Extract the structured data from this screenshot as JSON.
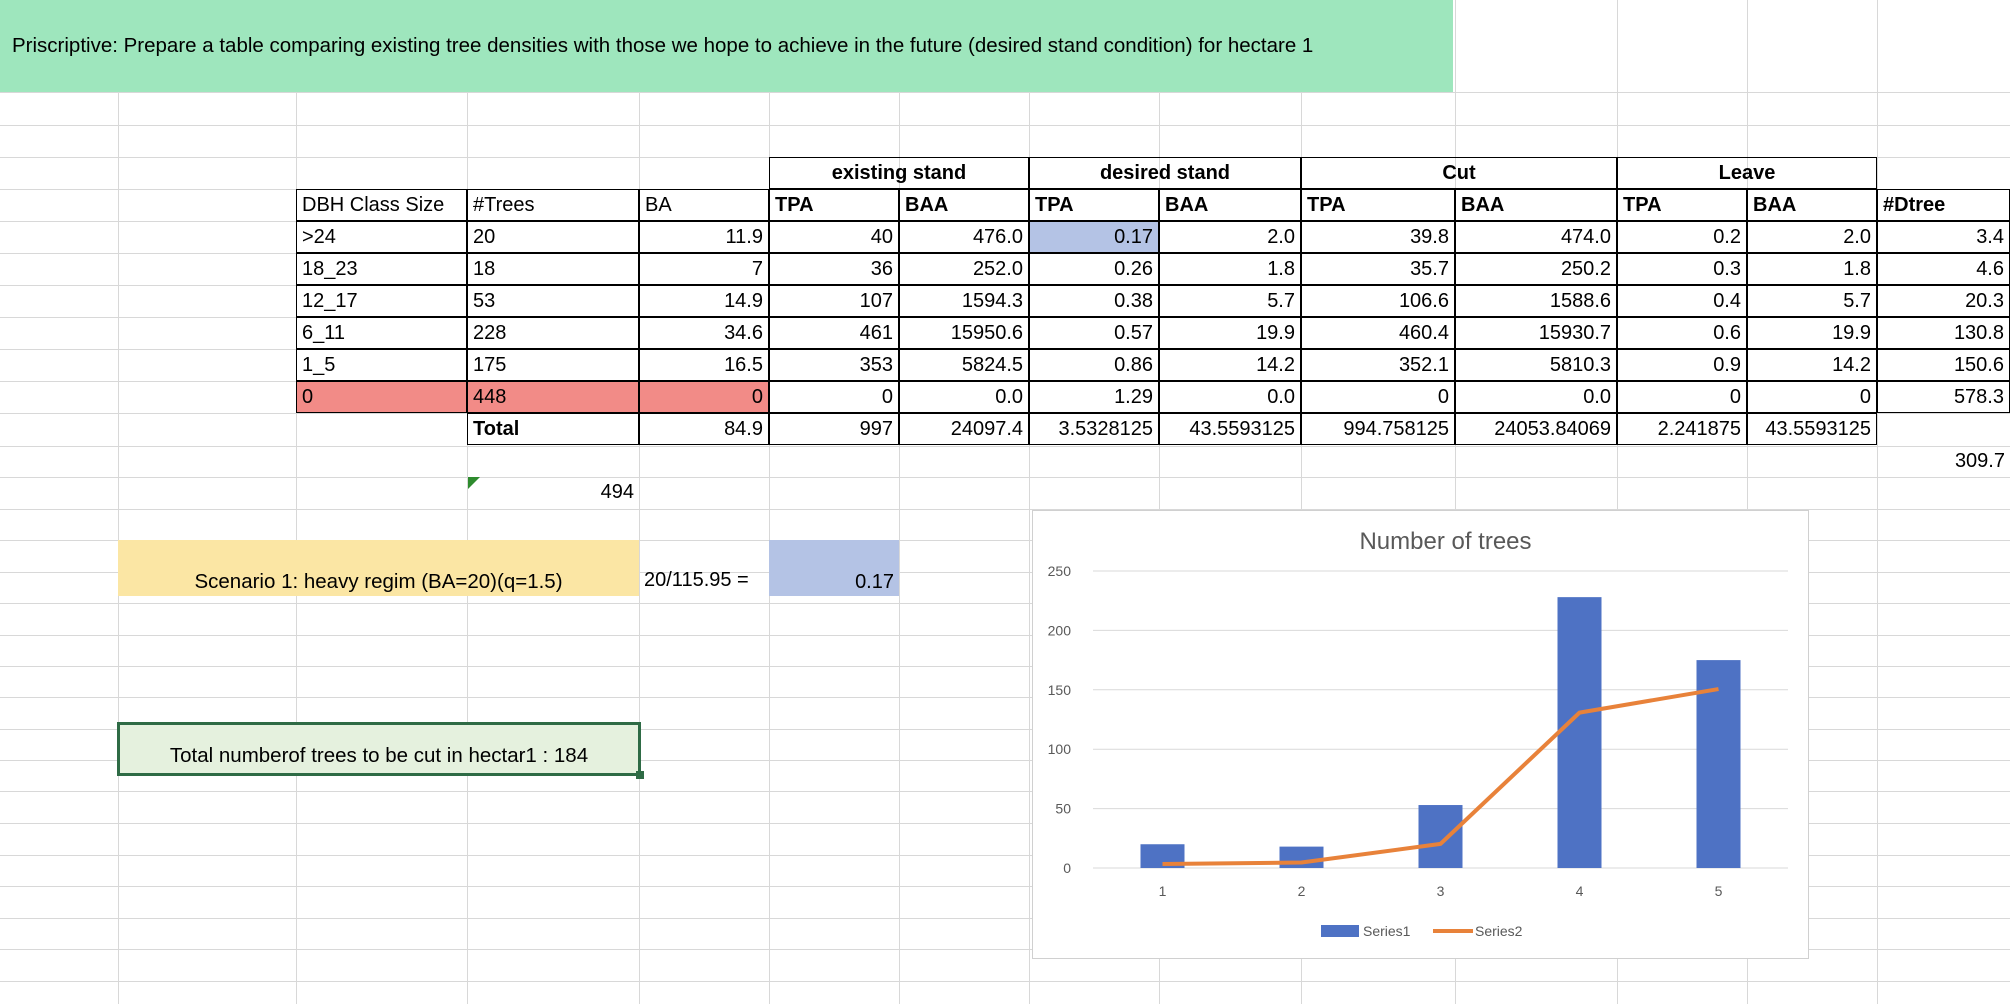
{
  "banner": "Priscriptive: Prepare a table comparing existing tree densities with those we hope to achieve in the future (desired stand condition) for hectare 1",
  "group_headers": {
    "existing": "existing stand",
    "desired": "desired stand",
    "cut": "Cut",
    "leave": "Leave"
  },
  "columns": [
    "DBH Class Size",
    "#Trees",
    "BA",
    "TPA",
    "BAA",
    "TPA",
    "BAA",
    "TPA",
    "BAA",
    "TPA",
    "BAA",
    "#Dtree"
  ],
  "rows": [
    [
      ">24",
      "20",
      "11.9",
      "40",
      "476.0",
      "0.17",
      "2.0",
      "39.8",
      "474.0",
      "0.2",
      "2.0",
      "3.4"
    ],
    [
      "18_23",
      "18",
      "7",
      "36",
      "252.0",
      "0.26",
      "1.8",
      "35.7",
      "250.2",
      "0.3",
      "1.8",
      "4.6"
    ],
    [
      "12_17",
      "53",
      "14.9",
      "107",
      "1594.3",
      "0.38",
      "5.7",
      "106.6",
      "1588.6",
      "0.4",
      "5.7",
      "20.3"
    ],
    [
      "6_11",
      "228",
      "34.6",
      "461",
      "15950.6",
      "0.57",
      "19.9",
      "460.4",
      "15930.7",
      "0.6",
      "19.9",
      "130.8"
    ],
    [
      "1_5",
      "175",
      "16.5",
      "353",
      "5824.5",
      "0.86",
      "14.2",
      "352.1",
      "5810.3",
      "0.9",
      "14.2",
      "150.6"
    ],
    [
      "0",
      "448",
      "0",
      "0",
      "0.0",
      "1.29",
      "0.0",
      "0",
      "0.0",
      "0",
      "0",
      "578.3"
    ]
  ],
  "total_row": [
    "Total",
    "84.9",
    "997",
    "24097.4",
    "3.5328125",
    "43.5593125",
    "994.758125",
    "24053.84069",
    "2.241875",
    "43.5593125"
  ],
  "dtree_sum": "309.7",
  "count_494": "494",
  "scenario_label": "Scenario 1: heavy regim (BA=20)(q=1.5)",
  "formula": "20/115.95 =",
  "formula_result": "0.17",
  "total_cut_text": "Total numberof trees to be cut in hectar1 : 184",
  "colors": {
    "banner": "#9ee6bd",
    "scenario": "#fbe6a4",
    "highlight_blue": "#b4c3e5",
    "highlight_pink": "#f28b87",
    "series1": "#4e72c4",
    "series2": "#e8823a"
  },
  "chart_data": {
    "type": "bar",
    "title": "Number  of trees",
    "categories": [
      "1",
      "2",
      "3",
      "4",
      "5"
    ],
    "series": [
      {
        "name": "Series1",
        "type": "bar",
        "values": [
          20,
          18,
          53,
          228,
          175
        ]
      },
      {
        "name": "Series2",
        "type": "line",
        "values": [
          3.4,
          4.6,
          20.3,
          130.8,
          150.6
        ]
      }
    ],
    "ylim": [
      0,
      250
    ],
    "yticks": [
      "0",
      "50",
      "100",
      "150",
      "200",
      "250"
    ],
    "grid": true,
    "legend": "bottom"
  }
}
